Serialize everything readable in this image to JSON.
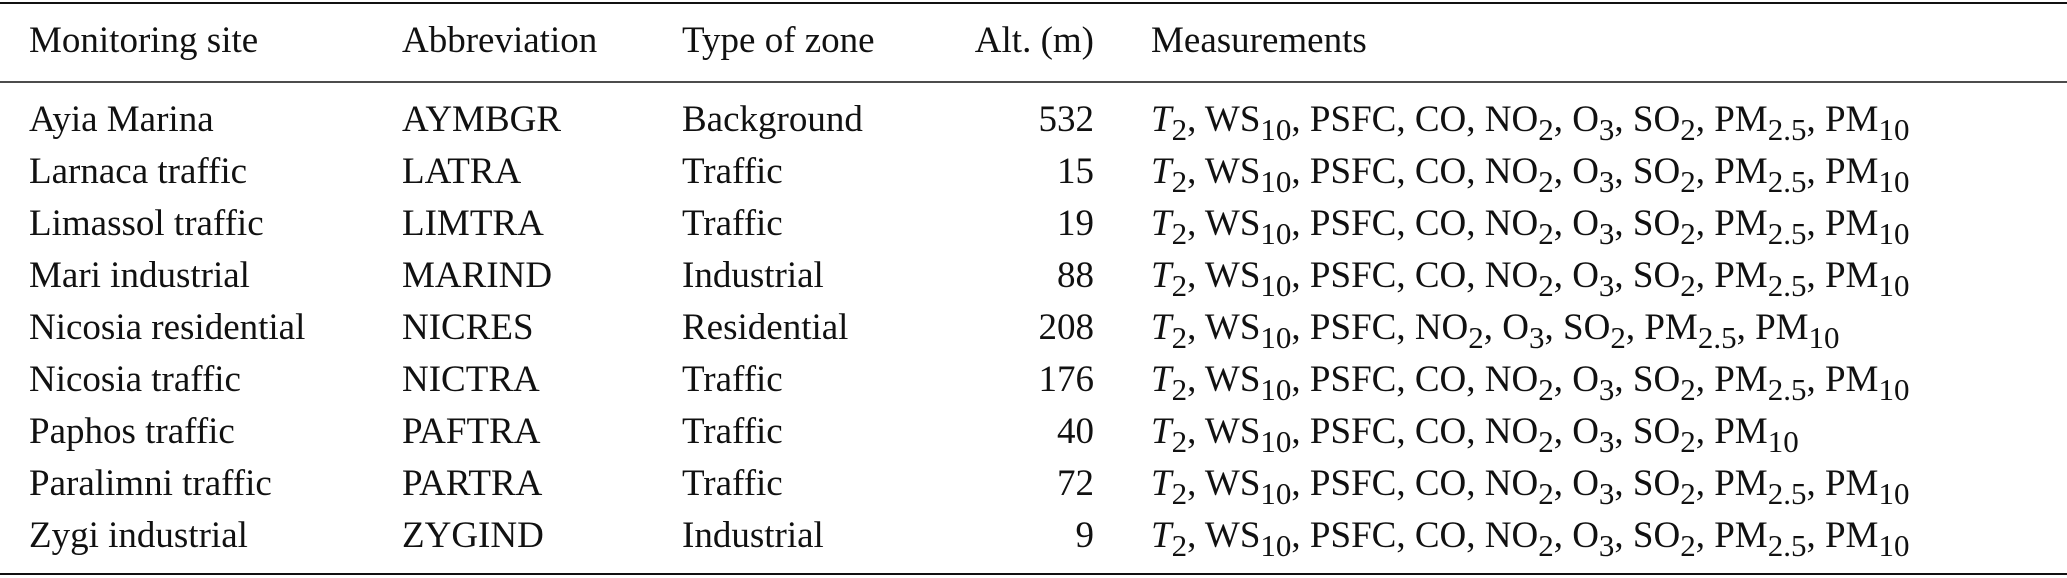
{
  "table": {
    "header": [
      "Monitoring site",
      "Abbreviation",
      "Type of zone",
      "Alt. (m)",
      "Measurements"
    ],
    "rows": [
      [
        "Ayia Marina",
        "AYMBGR",
        "Background",
        532,
        [
          "T",
          "2",
          ", WS",
          "10",
          ", PSFC, CO, NO",
          "2",
          ", O",
          "3",
          ", SO",
          "2",
          ", PM",
          "2.5",
          ", PM",
          "10"
        ]
      ],
      [
        "Larnaca traffic",
        "LATRA",
        "Traffic",
        15,
        [
          "T",
          "2",
          ", WS",
          "10",
          ", PSFC, CO, NO",
          "2",
          ", O",
          "3",
          ", SO",
          "2",
          ", PM",
          "2.5",
          ", PM",
          "10"
        ]
      ],
      [
        "Limassol traffic",
        "LIMTRA",
        "Traffic",
        19,
        [
          "T",
          "2",
          ", WS",
          "10",
          ", PSFC, CO, NO",
          "2",
          ", O",
          "3",
          ", SO",
          "2",
          ", PM",
          "2.5",
          ", PM",
          "10"
        ]
      ],
      [
        "Mari industrial",
        "MARIND",
        "Industrial",
        88,
        [
          "T",
          "2",
          ", WS",
          "10",
          ", PSFC, CO, NO",
          "2",
          ", O",
          "3",
          ", SO",
          "2",
          ", PM",
          "2.5",
          ", PM",
          "10"
        ]
      ],
      [
        "Nicosia residential",
        "NICRES",
        "Residential",
        208,
        [
          "T",
          "2",
          ", WS",
          "10",
          ", PSFC, NO",
          "2",
          ", O",
          "3",
          ", SO",
          "2",
          ", PM",
          "2.5",
          ", PM",
          "10"
        ]
      ],
      [
        "Nicosia traffic",
        "NICTRA",
        "Traffic",
        176,
        [
          "T",
          "2",
          ", WS",
          "10",
          ", PSFC, CO, NO",
          "2",
          ", O",
          "3",
          ", SO",
          "2",
          ", PM",
          "2.5",
          ", PM",
          "10"
        ]
      ],
      [
        "Paphos traffic",
        "PAFTRA",
        "Traffic",
        40,
        [
          "T",
          "2",
          ", WS",
          "10",
          ", PSFC, CO, NO",
          "2",
          ", O",
          "3",
          ", SO",
          "2",
          ", PM",
          "10"
        ]
      ],
      [
        "Paralimni traffic",
        "PARTRA",
        "Traffic",
        72,
        [
          "T",
          "2",
          ", WS",
          "10",
          ", PSFC, CO, NO",
          "2",
          ", O",
          "3",
          ", SO",
          "2",
          ", PM",
          "2.5",
          ", PM",
          "10"
        ]
      ],
      [
        "Zygi industrial",
        "ZYGIND",
        "Industrial",
        9,
        [
          "T",
          "2",
          ", WS",
          "10",
          ", PSFC, CO, NO",
          "2",
          ", O",
          "3",
          ", SO",
          "2",
          ", PM",
          "2.5",
          ", PM",
          "10"
        ]
      ]
    ]
  }
}
